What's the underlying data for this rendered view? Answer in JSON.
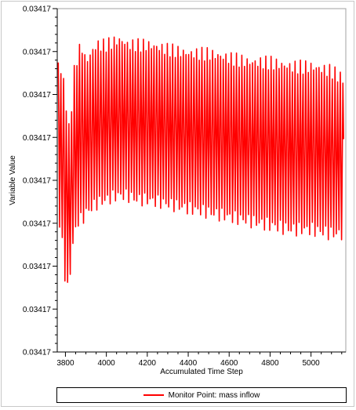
{
  "chart_data": {
    "type": "line",
    "title": "",
    "xlabel": "Accumulated Time Step",
    "ylabel": "Variable Value",
    "x_ticks": [
      3800,
      4000,
      4200,
      4400,
      4600,
      4800,
      5000
    ],
    "y_tick_labels": [
      "0.03417",
      "0.03417",
      "0.03417",
      "0.03417",
      "0.03417",
      "0.03417",
      "0.03417",
      "0.03417",
      "0.03417"
    ],
    "xlim": [
      3760,
      5170
    ],
    "ylim": [
      0,
      8
    ],
    "y_scale_note": "tick labels all read 0.03417; y values given in tick-interval units from bottom tick",
    "grid": false,
    "legend_position": "bottom",
    "series": [
      {
        "name": "Monitor Point: mass inflow",
        "color": "#ff0000",
        "envelope": {
          "x": [
            3765,
            3790,
            3805,
            3820,
            3840,
            3860,
            3880,
            3900,
            3950,
            4000,
            4050,
            4080,
            4100,
            4150,
            4200,
            4300,
            4400,
            4500,
            4600,
            4700,
            4800,
            4900,
            5000,
            5100,
            5160
          ],
          "upper": [
            6.9,
            6.5,
            5.9,
            5.2,
            6.6,
            7.1,
            7.3,
            6.9,
            7.3,
            7.3,
            7.4,
            7.4,
            7.3,
            7.3,
            7.3,
            7.2,
            7.1,
            7.1,
            7.0,
            6.9,
            6.9,
            6.8,
            6.8,
            6.7,
            6.5
          ],
          "lower": [
            3.0,
            2.2,
            1.1,
            1.6,
            2.5,
            2.9,
            2.9,
            3.1,
            3.3,
            3.4,
            3.5,
            3.5,
            3.5,
            3.4,
            3.4,
            3.3,
            3.2,
            3.1,
            3.0,
            2.9,
            2.8,
            2.7,
            2.7,
            2.6,
            2.6
          ]
        },
        "approx_oscillation_period_steps": 13
      }
    ]
  }
}
